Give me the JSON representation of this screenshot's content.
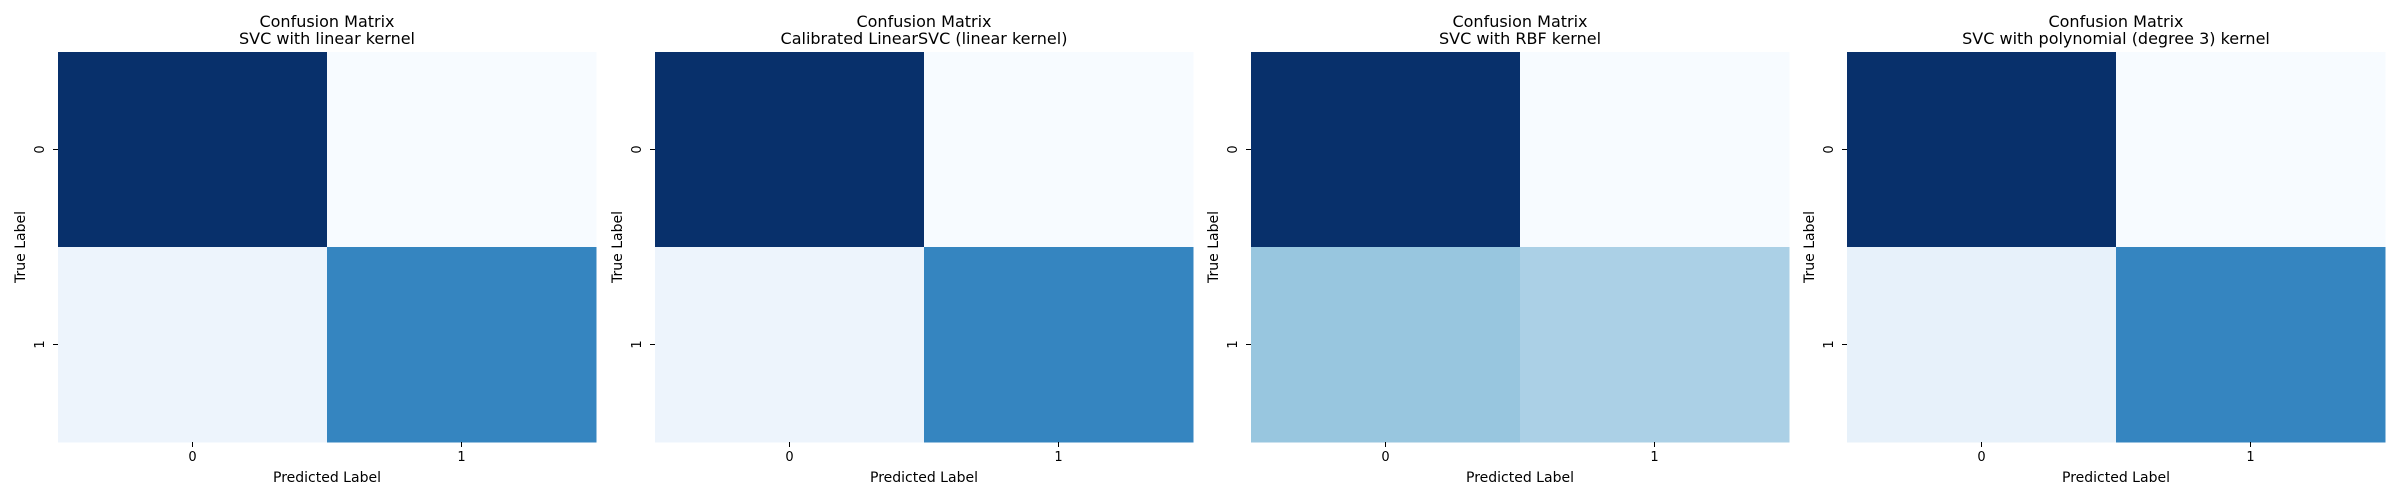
{
  "chart_data": [
    {
      "type": "heatmap",
      "title": "Confusion Matrix",
      "subtitle": "SVC with linear kernel",
      "xlabel": "Predicted Label",
      "ylabel": "True Label",
      "x_categories": [
        "0",
        "1"
      ],
      "y_categories": [
        "0",
        "1"
      ],
      "values": [
        [
          1.0,
          0.0
        ],
        [
          0.04,
          0.62
        ]
      ],
      "colormap": "Blues",
      "colors": [
        [
          "#08306b",
          "#f7fbff"
        ],
        [
          "#edf4fc",
          "#3585c0"
        ]
      ]
    },
    {
      "type": "heatmap",
      "title": "Confusion Matrix",
      "subtitle": "Calibrated LinearSVC (linear kernel)",
      "xlabel": "Predicted Label",
      "ylabel": "True Label",
      "x_categories": [
        "0",
        "1"
      ],
      "y_categories": [
        "0",
        "1"
      ],
      "values": [
        [
          1.0,
          0.0
        ],
        [
          0.04,
          0.62
        ]
      ],
      "colormap": "Blues",
      "colors": [
        [
          "#08306b",
          "#f7fbff"
        ],
        [
          "#edf4fc",
          "#3585c0"
        ]
      ]
    },
    {
      "type": "heatmap",
      "title": "Confusion Matrix",
      "subtitle": "SVC with RBF kernel",
      "xlabel": "Predicted Label",
      "ylabel": "True Label",
      "x_categories": [
        "0",
        "1"
      ],
      "y_categories": [
        "0",
        "1"
      ],
      "values": [
        [
          1.0,
          0.0
        ],
        [
          0.33,
          0.29
        ]
      ],
      "colormap": "Blues",
      "colors": [
        [
          "#08306b",
          "#f7fbff"
        ],
        [
          "#98c6df",
          "#abd0e6"
        ]
      ]
    },
    {
      "type": "heatmap",
      "title": "Confusion Matrix",
      "subtitle": "SVC with polynomial (degree 3) kernel",
      "xlabel": "Predicted Label",
      "ylabel": "True Label",
      "x_categories": [
        "0",
        "1"
      ],
      "y_categories": [
        "0",
        "1"
      ],
      "values": [
        [
          1.0,
          0.0
        ],
        [
          0.07,
          0.62
        ]
      ],
      "colormap": "Blues",
      "colors": [
        [
          "#08306b",
          "#f7fbff"
        ],
        [
          "#e7f1fa",
          "#3585c0"
        ]
      ]
    }
  ]
}
